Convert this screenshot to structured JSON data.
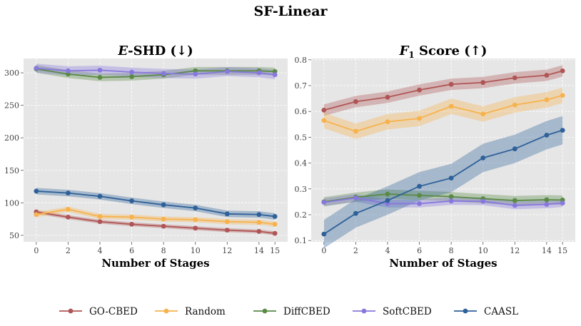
{
  "figure_title": "SF-Linear",
  "colors": {
    "GO-CBED": "#b05555",
    "Random": "#f7b24d",
    "DiffCBED": "#5a8a45",
    "SoftCBED": "#8878dd",
    "CAASL": "#2e6199",
    "panel_bg": "#e6e6e6",
    "grid": "#ffffff"
  },
  "legend": [
    "GO-CBED",
    "Random",
    "DiffCBED",
    "SoftCBED",
    "CAASL"
  ],
  "chart_data": [
    {
      "type": "line",
      "title_symbol": "E",
      "title_rest": "-SHD (↓)",
      "xlabel": "Number of Stages",
      "ylabel": "",
      "xlim": [
        -0.8,
        15.8
      ],
      "ylim": [
        40,
        322
      ],
      "xticks": [
        0,
        2,
        4,
        6,
        8,
        10,
        12,
        14,
        15
      ],
      "yticks": [
        50,
        100,
        150,
        200,
        250,
        300
      ],
      "x": [
        0,
        2,
        4,
        6,
        8,
        10,
        12,
        14,
        15
      ],
      "grid": true,
      "series": [
        {
          "name": "GO-CBED",
          "values": [
            86,
            78,
            71,
            67,
            64,
            61,
            58,
            56,
            53
          ],
          "band": 3
        },
        {
          "name": "Random",
          "values": [
            82,
            90,
            79,
            78,
            75,
            74,
            71,
            70,
            67
          ],
          "band": 4
        },
        {
          "name": "DiffCBED",
          "values": [
            306,
            298,
            293,
            294,
            297,
            303,
            303,
            303,
            302
          ],
          "band": 6
        },
        {
          "name": "SoftCBED",
          "values": [
            307,
            303,
            304,
            301,
            299,
            298,
            302,
            300,
            297
          ],
          "band": 7
        },
        {
          "name": "CAASL",
          "values": [
            118,
            115,
            110,
            103,
            97,
            92,
            83,
            82,
            79
          ],
          "band": 5
        }
      ]
    },
    {
      "type": "line",
      "title_symbol": "F",
      "title_sub": "1",
      "title_rest": " Score (↑)",
      "xlabel": "Number of Stages",
      "ylabel": "",
      "xlim": [
        -0.8,
        15.8
      ],
      "ylim": [
        0.095,
        0.805
      ],
      "xticks": [
        0,
        2,
        4,
        6,
        8,
        10,
        12,
        14,
        15
      ],
      "yticks": [
        0.1,
        0.2,
        0.3,
        0.4,
        0.5,
        0.6,
        0.7,
        0.8
      ],
      "x": [
        0,
        2,
        4,
        6,
        8,
        10,
        12,
        14,
        15
      ],
      "grid": true,
      "series": [
        {
          "name": "GO-CBED",
          "values": [
            0.605,
            0.638,
            0.655,
            0.683,
            0.705,
            0.712,
            0.73,
            0.74,
            0.757
          ],
          "band": 0.022
        },
        {
          "name": "Random",
          "values": [
            0.565,
            0.523,
            0.56,
            0.573,
            0.62,
            0.59,
            0.625,
            0.645,
            0.662
          ],
          "band": 0.03
        },
        {
          "name": "DiffCBED",
          "values": [
            0.25,
            0.268,
            0.28,
            0.275,
            0.27,
            0.262,
            0.255,
            0.258,
            0.257
          ],
          "band": 0.018
        },
        {
          "name": "SoftCBED",
          "values": [
            0.248,
            0.265,
            0.243,
            0.243,
            0.253,
            0.252,
            0.236,
            0.24,
            0.245
          ],
          "band": 0.015
        },
        {
          "name": "CAASL",
          "values": [
            0.125,
            0.205,
            0.255,
            0.31,
            0.342,
            0.42,
            0.455,
            0.508,
            0.527
          ],
          "band": 0.055
        }
      ]
    }
  ]
}
